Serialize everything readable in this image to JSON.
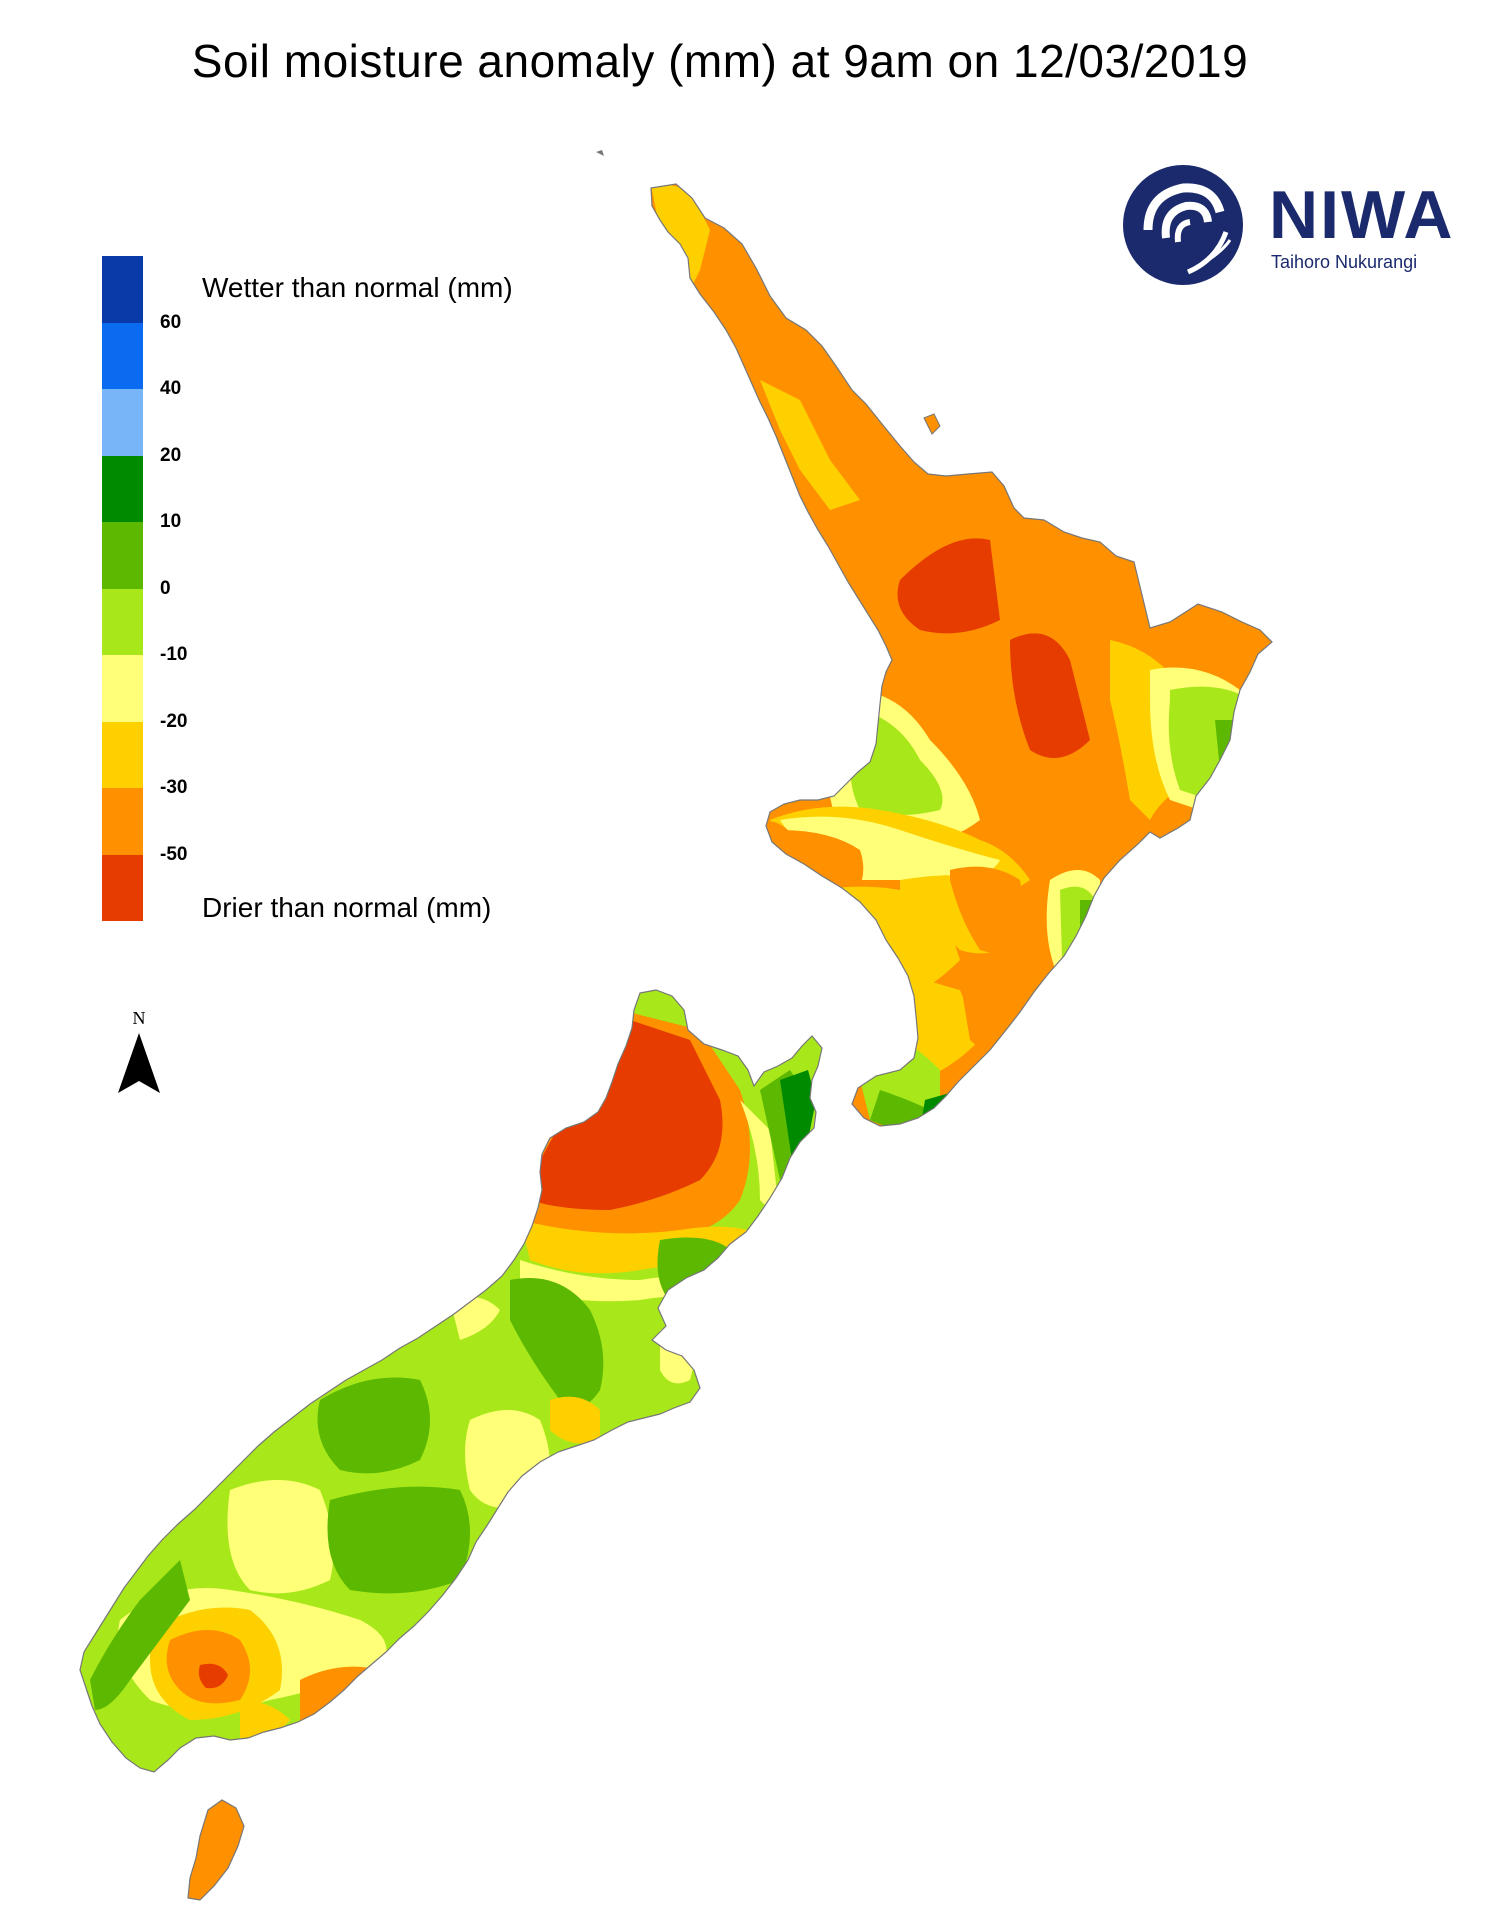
{
  "title": "Soil moisture anomaly (mm) at 9am on 12/03/2019",
  "legend": {
    "wetter_label": "Wetter than normal (mm)",
    "drier_label": "Drier than normal (mm)",
    "ticks": [
      "60",
      "40",
      "20",
      "10",
      "0",
      "-10",
      "-20",
      "-30",
      "-50"
    ],
    "colors": [
      "#0a3aa8",
      "#0a6af0",
      "#78b4f8",
      "#008a00",
      "#5cb800",
      "#a8e81a",
      "#ffff78",
      "#ffd000",
      "#ff9000",
      "#e63c00"
    ]
  },
  "logo": {
    "name": "NIWA",
    "subtitle": "Taihoro Nukurangi",
    "color": "#1a2a6c"
  },
  "north_arrow": {
    "letter": "N"
  },
  "map": {
    "region": "New Zealand",
    "water_color": "#ffffff",
    "coast_color": "#777777"
  }
}
